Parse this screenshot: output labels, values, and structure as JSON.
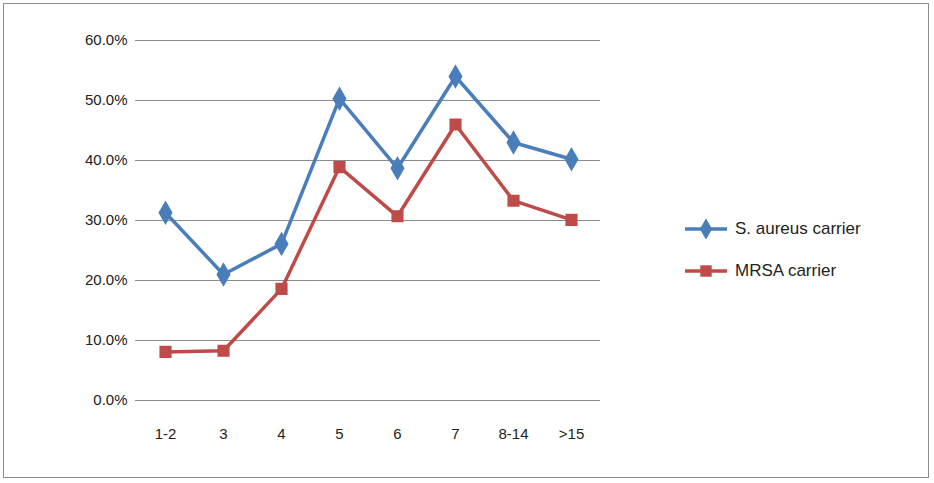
{
  "chart_data": {
    "type": "line",
    "categories": [
      "1-2",
      "3",
      "4",
      "5",
      "6",
      "7",
      "8-14",
      ">15"
    ],
    "series": [
      {
        "name": "S. aureus carrier",
        "color": "#4a7ebb",
        "marker": "diamond",
        "line_style": "solid",
        "values": [
          31.3,
          21.0,
          26.1,
          50.3,
          38.7,
          54.0,
          43.0,
          40.2
        ]
      },
      {
        "name": "MRSA carrier",
        "color": "#be4b48",
        "marker": "square",
        "line_style": "solid",
        "values": [
          8.1,
          8.3,
          18.6,
          38.9,
          30.7,
          46.0,
          33.3,
          30.1
        ]
      }
    ],
    "ylim": [
      0,
      60
    ],
    "yticks": [
      {
        "value": 0,
        "label": "0.0%"
      },
      {
        "value": 10,
        "label": "10.0%"
      },
      {
        "value": 20,
        "label": "20.0%"
      },
      {
        "value": 30,
        "label": "30.0%"
      },
      {
        "value": 40,
        "label": "40.0%"
      },
      {
        "value": 50,
        "label": "50.0%"
      },
      {
        "value": 60,
        "label": "60.0%"
      }
    ],
    "grid": true,
    "legend": "right"
  }
}
